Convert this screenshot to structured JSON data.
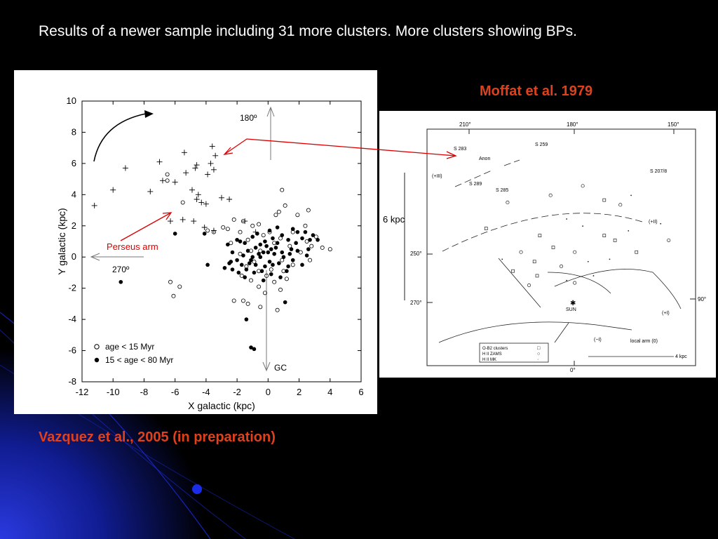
{
  "slide": {
    "heading": "Results of a newer sample including 31 more clusters. More clusters showing BPs.",
    "citation_right": "Moffat et al. 1979",
    "citation_left": "Vazquez et al., 2005 (in preparation)",
    "colors": {
      "background": "#000000",
      "accent_blue": "#1a2bd8",
      "citation": "#e0401c",
      "arrow": "#dd0000"
    }
  },
  "chart_data": [
    {
      "type": "scatter",
      "xlabel": "X galactic (kpc)",
      "ylabel": "Y galactic (kpc)",
      "xlim": [
        -12,
        6
      ],
      "ylim": [
        -8,
        10
      ],
      "xticks": [
        "-12",
        "-10",
        "-8",
        "-6",
        "-4",
        "-2",
        "0",
        "2",
        "4",
        "6"
      ],
      "yticks": [
        "10",
        "8",
        "6",
        "4",
        "2",
        "0",
        "-2",
        "-4",
        "-6",
        "-8"
      ],
      "annotations": {
        "top": "180º",
        "left": "270º",
        "bottom": "GC",
        "arm": "Perseus arm"
      },
      "legend_position": "bottom-left",
      "series": [
        {
          "name": "age < 15 Myr",
          "marker": "open-circle",
          "points": [
            [
              -6.5,
              5.3
            ],
            [
              -6.5,
              4.9
            ],
            [
              -5.5,
              3.5
            ],
            [
              -3.9,
              1.7
            ],
            [
              -3.5,
              1.6
            ],
            [
              -2.9,
              1.9
            ],
            [
              -2.6,
              1.8
            ],
            [
              -2.2,
              2.4
            ],
            [
              -1.8,
              1.6
            ],
            [
              -1.6,
              2.3
            ],
            [
              -1.3,
              1.1
            ],
            [
              -1.0,
              2.0
            ],
            [
              -0.6,
              2.1
            ],
            [
              -0.3,
              1.4
            ],
            [
              0.1,
              1.6
            ],
            [
              0.5,
              2.7
            ],
            [
              0.7,
              2.9
            ],
            [
              0.8,
              1.2
            ],
            [
              0.9,
              4.3
            ],
            [
              1.1,
              3.3
            ],
            [
              1.6,
              1.6
            ],
            [
              1.9,
              2.7
            ],
            [
              2.4,
              2.0
            ],
            [
              2.5,
              1.0
            ],
            [
              2.6,
              3.0
            ],
            [
              2.8,
              0.7
            ],
            [
              3.1,
              1.3
            ],
            [
              3.5,
              0.6
            ],
            [
              4.0,
              0.5
            ],
            [
              -1.7,
              -1.2
            ],
            [
              -1.1,
              -1.5
            ],
            [
              -0.6,
              -1.9
            ],
            [
              -0.1,
              -1.2
            ],
            [
              0.4,
              -1.6
            ],
            [
              0.8,
              -2.1
            ],
            [
              1.2,
              -1.4
            ],
            [
              -2.2,
              -2.8
            ],
            [
              -1.6,
              -2.8
            ],
            [
              -1.3,
              -3.0
            ],
            [
              -0.5,
              -3.2
            ],
            [
              0.6,
              -3.4
            ],
            [
              -1.4,
              -0.6
            ],
            [
              -0.9,
              -0.3
            ],
            [
              -0.5,
              0.4
            ],
            [
              0.2,
              -0.8
            ],
            [
              0.9,
              -0.2
            ],
            [
              1.6,
              -0.5
            ],
            [
              2.1,
              0.3
            ],
            [
              -5.7,
              -1.9
            ],
            [
              -6.1,
              -2.5
            ],
            [
              -6.3,
              -1.6
            ],
            [
              -2.4,
              0.9
            ],
            [
              -1.1,
              0.4
            ],
            [
              0.4,
              0.9
            ],
            [
              1.4,
              0.7
            ],
            [
              -0.6,
              -0.9
            ],
            [
              1.0,
              -0.9
            ],
            [
              -1.8,
              0.2
            ],
            [
              2.7,
              -0.2
            ],
            [
              -0.2,
              -2.3
            ]
          ]
        },
        {
          "name": "15 < age < 80 Myr",
          "marker": "filled-circle",
          "points": [
            [
              -6.0,
              1.5
            ],
            [
              -4.1,
              1.5
            ],
            [
              -3.9,
              -0.5
            ],
            [
              -2.6,
              0.8
            ],
            [
              -2.4,
              -0.3
            ],
            [
              -2.0,
              1.1
            ],
            [
              -1.8,
              1.0
            ],
            [
              -1.5,
              0.9
            ],
            [
              -1.3,
              0.4
            ],
            [
              -1.0,
              1.3
            ],
            [
              -0.7,
              1.5
            ],
            [
              -0.5,
              0.8
            ],
            [
              -0.2,
              1.0
            ],
            [
              0.1,
              1.7
            ],
            [
              0.3,
              1.2
            ],
            [
              0.6,
              1.9
            ],
            [
              0.9,
              1.4
            ],
            [
              1.3,
              1.1
            ],
            [
              1.6,
              1.8
            ],
            [
              1.9,
              1.6
            ],
            [
              2.2,
              1.2
            ],
            [
              2.4,
              1.6
            ],
            [
              2.7,
              1.1
            ],
            [
              2.9,
              1.4
            ],
            [
              3.2,
              1.1
            ],
            [
              -2.8,
              -0.7
            ],
            [
              -2.3,
              -0.8
            ],
            [
              -2.0,
              -0.2
            ],
            [
              -1.7,
              -0.5
            ],
            [
              -1.4,
              -0.8
            ],
            [
              -1.1,
              -0.2
            ],
            [
              -0.8,
              -0.5
            ],
            [
              -0.5,
              0.0
            ],
            [
              -0.2,
              -0.6
            ],
            [
              0.1,
              -0.3
            ],
            [
              0.4,
              0.2
            ],
            [
              0.7,
              -0.4
            ],
            [
              1.0,
              0.0
            ],
            [
              1.3,
              -0.6
            ],
            [
              1.6,
              -0.2
            ],
            [
              1.9,
              0.4
            ],
            [
              2.2,
              -0.5
            ],
            [
              2.5,
              0.1
            ],
            [
              -1.5,
              -1.3
            ],
            [
              -0.9,
              -1.0
            ],
            [
              -0.3,
              -1.5
            ],
            [
              0.2,
              -1.1
            ],
            [
              0.8,
              -1.3
            ],
            [
              1.2,
              -0.9
            ],
            [
              1.1,
              -2.9
            ],
            [
              -1.4,
              -4.0
            ],
            [
              -1.1,
              -5.8
            ],
            [
              -0.9,
              -5.9
            ],
            [
              -9.5,
              -1.6
            ],
            [
              -2.3,
              0.3
            ],
            [
              -1.6,
              0.1
            ],
            [
              -0.8,
              0.6
            ],
            [
              0.0,
              0.3
            ],
            [
              0.5,
              0.6
            ],
            [
              1.5,
              0.5
            ],
            [
              -1.2,
              -0.4
            ],
            [
              -0.4,
              -0.9
            ],
            [
              0.3,
              -0.5
            ],
            [
              1.8,
              0.9
            ],
            [
              2.6,
              0.5
            ],
            [
              -0.1,
              0.7
            ],
            [
              0.6,
              0.9
            ],
            [
              -2.5,
              -0.4
            ],
            [
              -1.9,
              -1.0
            ],
            [
              -0.6,
              0.2
            ],
            [
              0.9,
              0.3
            ],
            [
              1.4,
              0.2
            ],
            [
              -0.3,
              0.3
            ],
            [
              0.2,
              0.5
            ],
            [
              -1.0,
              0.0
            ]
          ]
        },
        {
          "name": "",
          "marker": "plus",
          "points": [
            [
              -11.2,
              3.3
            ],
            [
              -9.2,
              5.7
            ],
            [
              -10.0,
              4.3
            ],
            [
              -7.6,
              4.2
            ],
            [
              -7.0,
              6.1
            ],
            [
              -6.8,
              4.9
            ],
            [
              -6.0,
              4.8
            ],
            [
              -5.4,
              6.7
            ],
            [
              -5.3,
              5.4
            ],
            [
              -4.6,
              5.9
            ],
            [
              -3.7,
              6.0
            ],
            [
              -3.5,
              5.6
            ],
            [
              -3.6,
              7.1
            ],
            [
              -4.7,
              5.7
            ],
            [
              -4.9,
              4.3
            ],
            [
              -3.9,
              5.3
            ],
            [
              -4.5,
              4.0
            ],
            [
              -4.0,
              3.4
            ],
            [
              -4.8,
              2.3
            ],
            [
              -5.5,
              2.4
            ],
            [
              -6.3,
              2.3
            ],
            [
              -4.3,
              3.5
            ],
            [
              -4.6,
              3.7
            ],
            [
              -3.5,
              1.7
            ],
            [
              -3.0,
              3.8
            ],
            [
              -2.5,
              3.7
            ],
            [
              -4.1,
              1.9
            ],
            [
              -1.5,
              2.3
            ],
            [
              -0.8,
              1.6
            ],
            [
              -3.4,
              6.5
            ]
          ]
        }
      ]
    },
    {
      "type": "scatter",
      "title": "",
      "top_labels": [
        "210°",
        "180°",
        "150°"
      ],
      "left_labels": [
        "250°",
        "270°"
      ],
      "right_label": "90°",
      "bottom_label": "0°",
      "scale_label": "6 kpc",
      "scale_bar": "4 kpc",
      "region_labels": [
        "S 283",
        "Anon",
        "S 259",
        "(+III)",
        "S 289",
        "S 285",
        "S 207/8",
        "(+II)",
        "SUN",
        "(+I)",
        "(−I)",
        "local arm (0)"
      ],
      "legend": [
        [
          "O-B2 clusters",
          "□"
        ],
        [
          "H II  ZAMS",
          "○"
        ],
        [
          "H II  MK",
          "·"
        ]
      ],
      "points": [
        [
          0.22,
          0.42
        ],
        [
          0.3,
          0.31
        ],
        [
          0.52,
          0.38
        ],
        [
          0.41,
          0.62
        ],
        [
          0.35,
          0.52
        ],
        [
          0.58,
          0.41
        ],
        [
          0.66,
          0.45
        ],
        [
          0.72,
          0.32
        ],
        [
          0.87,
          0.4
        ],
        [
          0.47,
          0.5
        ],
        [
          0.55,
          0.52
        ],
        [
          0.6,
          0.56
        ],
        [
          0.7,
          0.47
        ],
        [
          0.5,
          0.58
        ],
        [
          0.28,
          0.55
        ],
        [
          0.32,
          0.6
        ],
        [
          0.46,
          0.28
        ],
        [
          0.68,
          0.55
        ],
        [
          0.78,
          0.52
        ],
        [
          0.55,
          0.65
        ],
        [
          0.62,
          0.62
        ],
        [
          0.4,
          0.56
        ],
        [
          0.58,
          0.24
        ],
        [
          0.76,
          0.28
        ],
        [
          0.66,
          0.3
        ],
        [
          0.9,
          0.47
        ],
        [
          0.75,
          0.43
        ],
        [
          0.42,
          0.45
        ],
        [
          0.38,
          0.66
        ],
        [
          0.52,
          0.64
        ]
      ]
    }
  ]
}
